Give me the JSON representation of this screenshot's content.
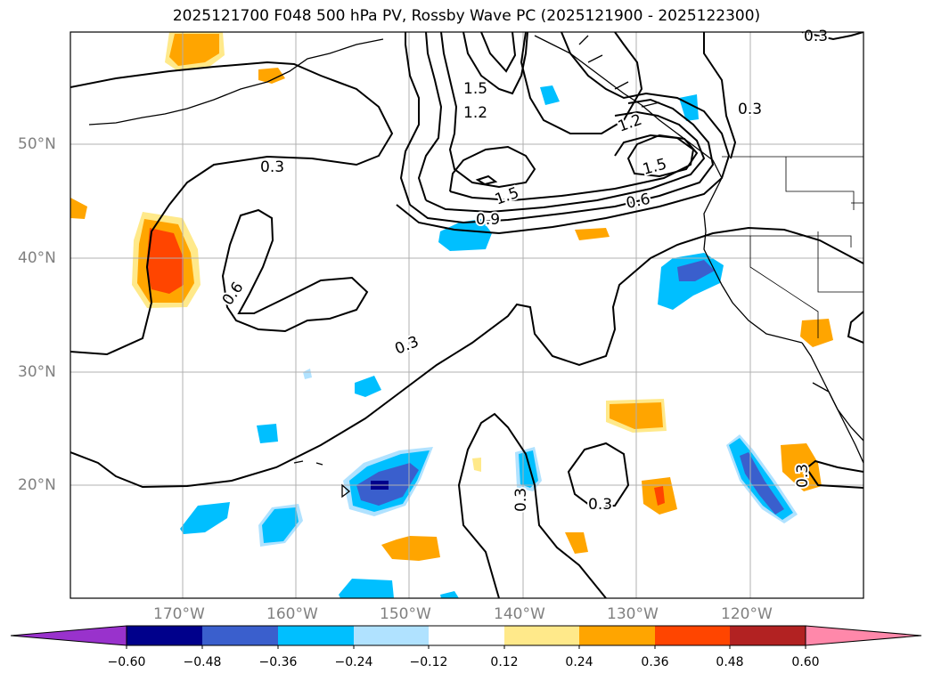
{
  "title": "2025121700 F048 500 hPa PV, Rossby Wave PC (2025121900 - 2025122300)",
  "lat_labels": [
    "50°N",
    "40°N",
    "30°N",
    "20°N"
  ],
  "lon_labels": [
    "170°W",
    "160°W",
    "150°W",
    "140°W",
    "130°W",
    "120°W"
  ],
  "contour_labels": [
    "1.5",
    "1.2",
    "0.3",
    "0.3",
    "0.6",
    "0.9",
    "1.5",
    "0.6",
    "1.2",
    "1.5",
    "0.3",
    "0.3",
    "0.3",
    "0.3",
    "0.3"
  ],
  "colorbar": {
    "tick_labels": [
      "−0.60",
      "−0.48",
      "−0.36",
      "−0.24",
      "−0.12",
      "0.12",
      "0.24",
      "0.36",
      "0.48",
      "0.60"
    ],
    "colors": [
      "#9932cc",
      "#00008b",
      "#3a5fcd",
      "#00bfff",
      "#b0e2ff",
      "#ffffff",
      "#ffe98a",
      "#ffa500",
      "#ff4500",
      "#b22222",
      "#ff88aa"
    ]
  },
  "colors": {
    "neg_strong": "#3a5fcd",
    "neg_mid": "#00bfff",
    "neg_light": "#b0e2ff",
    "neg_darkest": "#00008b",
    "pos_light": "#ffe98a",
    "pos_mid": "#ffa500",
    "pos_strong": "#ff4500"
  }
}
